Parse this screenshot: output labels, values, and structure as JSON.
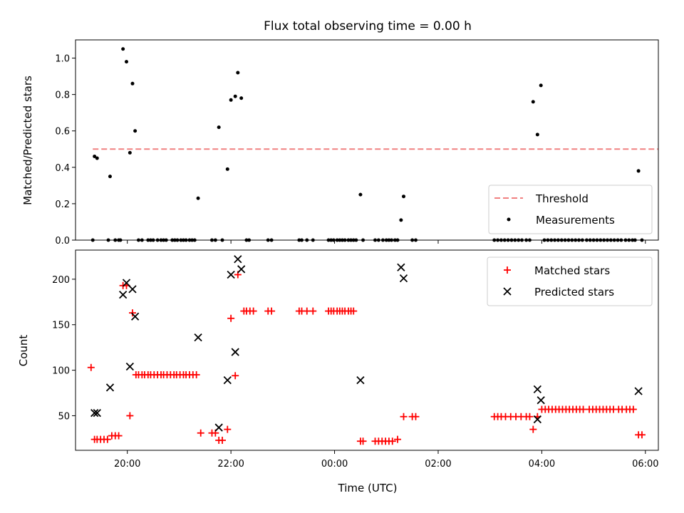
{
  "figure": {
    "title": "Flux total observing time = 0.00 h",
    "xlabel": "Time (UTC)",
    "x_ticks": [
      "20:00",
      "22:00",
      "00:00",
      "02:00",
      "04:00",
      "06:00"
    ]
  },
  "colors": {
    "threshold": "#f08080",
    "measurements": "#000000",
    "matched": "#ff0000",
    "predicted": "#000000"
  },
  "chart_data": [
    {
      "type": "scatter",
      "panel": "top",
      "ylabel": "Matched/Predicted stars",
      "xlim": [
        "19:00",
        "06:15"
      ],
      "ylim": [
        0,
        1.1
      ],
      "y_ticks": [
        "0.0",
        "0.2",
        "0.4",
        "0.6",
        "0.8",
        "1.0"
      ],
      "y_tick_values": [
        0,
        0.2,
        0.4,
        0.6,
        0.8,
        1.0
      ],
      "legend_position": "lower-right",
      "series": [
        {
          "name": "Threshold",
          "kind": "line",
          "style": "dashed",
          "x": [
            "19:20",
            "06:15"
          ],
          "y": [
            0.5,
            0.5
          ]
        },
        {
          "name": "Measurements",
          "kind": "scatter",
          "marker": "dot",
          "points": [
            [
              "19:20",
              0.0
            ],
            [
              "19:22",
              0.46
            ],
            [
              "19:25",
              0.45
            ],
            [
              "19:38",
              0.0
            ],
            [
              "19:40",
              0.35
            ],
            [
              "19:46",
              0.0
            ],
            [
              "19:50",
              0.0
            ],
            [
              "19:52",
              0.0
            ],
            [
              "19:55",
              1.05
            ],
            [
              "19:59",
              0.98
            ],
            [
              "20:03",
              0.48
            ],
            [
              "20:06",
              0.86
            ],
            [
              "20:09",
              0.6
            ],
            [
              "20:13",
              0.0
            ],
            [
              "20:17",
              0.0
            ],
            [
              "20:24",
              0.0
            ],
            [
              "20:27",
              0.0
            ],
            [
              "20:30",
              0.0
            ],
            [
              "20:35",
              0.0
            ],
            [
              "20:39",
              0.0
            ],
            [
              "20:42",
              0.0
            ],
            [
              "20:45",
              0.0
            ],
            [
              "20:52",
              0.0
            ],
            [
              "20:55",
              0.0
            ],
            [
              "20:58",
              0.0
            ],
            [
              "21:02",
              0.0
            ],
            [
              "21:05",
              0.0
            ],
            [
              "21:08",
              0.0
            ],
            [
              "21:12",
              0.0
            ],
            [
              "21:15",
              0.0
            ],
            [
              "21:18",
              0.0
            ],
            [
              "21:22",
              0.23
            ],
            [
              "21:38",
              0.0
            ],
            [
              "21:42",
              0.0
            ],
            [
              "21:46",
              0.62
            ],
            [
              "21:50",
              0.0
            ],
            [
              "21:56",
              0.39
            ],
            [
              "22:00",
              0.77
            ],
            [
              "22:05",
              0.79
            ],
            [
              "22:08",
              0.92
            ],
            [
              "22:12",
              0.78
            ],
            [
              "22:18",
              0.0
            ],
            [
              "22:21",
              0.0
            ],
            [
              "22:43",
              0.0
            ],
            [
              "22:47",
              0.0
            ],
            [
              "23:19",
              0.0
            ],
            [
              "23:22",
              0.0
            ],
            [
              "23:28",
              0.0
            ],
            [
              "23:35",
              0.0
            ],
            [
              "23:53",
              0.0
            ],
            [
              "23:56",
              0.0
            ],
            [
              "23:59",
              0.0
            ],
            [
              "00:03",
              0.0
            ],
            [
              "00:06",
              0.0
            ],
            [
              "00:09",
              0.0
            ],
            [
              "00:12",
              0.0
            ],
            [
              "00:16",
              0.0
            ],
            [
              "00:19",
              0.0
            ],
            [
              "00:22",
              0.0
            ],
            [
              "00:25",
              0.0
            ],
            [
              "00:30",
              0.25
            ],
            [
              "00:33",
              0.0
            ],
            [
              "00:47",
              0.0
            ],
            [
              "00:51",
              0.0
            ],
            [
              "00:56",
              0.0
            ],
            [
              "01:00",
              0.0
            ],
            [
              "01:03",
              0.0
            ],
            [
              "01:06",
              0.0
            ],
            [
              "01:10",
              0.0
            ],
            [
              "01:13",
              0.0
            ],
            [
              "01:17",
              0.11
            ],
            [
              "01:20",
              0.24
            ],
            [
              "01:30",
              0.0
            ],
            [
              "01:34",
              0.0
            ],
            [
              "03:05",
              0.0
            ],
            [
              "03:09",
              0.0
            ],
            [
              "03:13",
              0.0
            ],
            [
              "03:17",
              0.0
            ],
            [
              "03:21",
              0.0
            ],
            [
              "03:25",
              0.0
            ],
            [
              "03:29",
              0.0
            ],
            [
              "03:33",
              0.0
            ],
            [
              "03:37",
              0.0
            ],
            [
              "03:42",
              0.0
            ],
            [
              "03:46",
              0.0
            ],
            [
              "03:50",
              0.76
            ],
            [
              "03:55",
              0.58
            ],
            [
              "03:59",
              0.85
            ],
            [
              "04:03",
              0.0
            ],
            [
              "04:07",
              0.0
            ],
            [
              "04:11",
              0.0
            ],
            [
              "04:15",
              0.0
            ],
            [
              "04:19",
              0.0
            ],
            [
              "04:23",
              0.0
            ],
            [
              "04:27",
              0.0
            ],
            [
              "04:31",
              0.0
            ],
            [
              "04:35",
              0.0
            ],
            [
              "04:39",
              0.0
            ],
            [
              "04:43",
              0.0
            ],
            [
              "04:47",
              0.0
            ],
            [
              "04:52",
              0.0
            ],
            [
              "04:56",
              0.0
            ],
            [
              "05:00",
              0.0
            ],
            [
              "05:04",
              0.0
            ],
            [
              "05:08",
              0.0
            ],
            [
              "05:12",
              0.0
            ],
            [
              "05:16",
              0.0
            ],
            [
              "05:20",
              0.0
            ],
            [
              "05:24",
              0.0
            ],
            [
              "05:28",
              0.0
            ],
            [
              "05:32",
              0.0
            ],
            [
              "05:37",
              0.0
            ],
            [
              "05:41",
              0.0
            ],
            [
              "05:45",
              0.0
            ],
            [
              "05:48",
              0.0
            ],
            [
              "05:52",
              0.38
            ],
            [
              "05:56",
              0.0
            ]
          ]
        }
      ]
    },
    {
      "type": "scatter",
      "panel": "bottom",
      "ylabel": "Count",
      "xlim": [
        "19:00",
        "06:15"
      ],
      "ylim": [
        12,
        232
      ],
      "y_ticks": [
        "50",
        "100",
        "150",
        "200"
      ],
      "y_tick_values": [
        50,
        100,
        150,
        200
      ],
      "legend_position": "upper-right",
      "series": [
        {
          "name": "Matched stars",
          "kind": "scatter",
          "marker": "plus",
          "points": [
            [
              "19:18",
              103
            ],
            [
              "19:22",
              24
            ],
            [
              "19:25",
              24
            ],
            [
              "19:29",
              24
            ],
            [
              "19:33",
              24
            ],
            [
              "19:37",
              24
            ],
            [
              "19:42",
              28
            ],
            [
              "19:46",
              28
            ],
            [
              "19:50",
              28
            ],
            [
              "19:55",
              193
            ],
            [
              "19:59",
              193
            ],
            [
              "20:03",
              50
            ],
            [
              "20:06",
              163
            ],
            [
              "20:10",
              95
            ],
            [
              "20:13",
              95
            ],
            [
              "20:17",
              95
            ],
            [
              "20:20",
              95
            ],
            [
              "20:24",
              95
            ],
            [
              "20:27",
              95
            ],
            [
              "20:31",
              95
            ],
            [
              "20:35",
              95
            ],
            [
              "20:39",
              95
            ],
            [
              "20:42",
              95
            ],
            [
              "20:46",
              95
            ],
            [
              "20:50",
              95
            ],
            [
              "20:54",
              95
            ],
            [
              "20:57",
              95
            ],
            [
              "21:01",
              95
            ],
            [
              "21:05",
              95
            ],
            [
              "21:08",
              95
            ],
            [
              "21:12",
              95
            ],
            [
              "21:16",
              95
            ],
            [
              "21:20",
              95
            ],
            [
              "21:25",
              31
            ],
            [
              "21:38",
              31
            ],
            [
              "21:42",
              31
            ],
            [
              "21:46",
              23
            ],
            [
              "21:50",
              23
            ],
            [
              "21:56",
              35
            ],
            [
              "22:00",
              157
            ],
            [
              "22:05",
              94
            ],
            [
              "22:08",
              205
            ],
            [
              "22:15",
              165
            ],
            [
              "22:18",
              165
            ],
            [
              "22:22",
              165
            ],
            [
              "22:26",
              165
            ],
            [
              "22:43",
              165
            ],
            [
              "22:47",
              165
            ],
            [
              "23:19",
              165
            ],
            [
              "23:22",
              165
            ],
            [
              "23:28",
              165
            ],
            [
              "23:35",
              165
            ],
            [
              "23:53",
              165
            ],
            [
              "23:56",
              165
            ],
            [
              "23:59",
              165
            ],
            [
              "00:03",
              165
            ],
            [
              "00:06",
              165
            ],
            [
              "00:09",
              165
            ],
            [
              "00:12",
              165
            ],
            [
              "00:16",
              165
            ],
            [
              "00:19",
              165
            ],
            [
              "00:22",
              165
            ],
            [
              "00:30",
              22
            ],
            [
              "00:33",
              22
            ],
            [
              "00:47",
              22
            ],
            [
              "00:51",
              22
            ],
            [
              "00:55",
              22
            ],
            [
              "00:59",
              22
            ],
            [
              "01:03",
              22
            ],
            [
              "01:07",
              22
            ],
            [
              "01:13",
              24
            ],
            [
              "01:20",
              49
            ],
            [
              "01:30",
              49
            ],
            [
              "01:34",
              49
            ],
            [
              "03:05",
              49
            ],
            [
              "03:09",
              49
            ],
            [
              "03:13",
              49
            ],
            [
              "03:18",
              49
            ],
            [
              "03:24",
              49
            ],
            [
              "03:30",
              49
            ],
            [
              "03:36",
              49
            ],
            [
              "03:42",
              49
            ],
            [
              "03:46",
              49
            ],
            [
              "03:50",
              35
            ],
            [
              "03:55",
              49
            ],
            [
              "04:00",
              57
            ],
            [
              "04:04",
              57
            ],
            [
              "04:08",
              57
            ],
            [
              "04:12",
              57
            ],
            [
              "04:16",
              57
            ],
            [
              "04:20",
              57
            ],
            [
              "04:24",
              57
            ],
            [
              "04:28",
              57
            ],
            [
              "04:32",
              57
            ],
            [
              "04:36",
              57
            ],
            [
              "04:40",
              57
            ],
            [
              "04:44",
              57
            ],
            [
              "04:48",
              57
            ],
            [
              "04:55",
              57
            ],
            [
              "04:59",
              57
            ],
            [
              "05:03",
              57
            ],
            [
              "05:07",
              57
            ],
            [
              "05:11",
              57
            ],
            [
              "05:15",
              57
            ],
            [
              "05:19",
              57
            ],
            [
              "05:23",
              57
            ],
            [
              "05:29",
              57
            ],
            [
              "05:33",
              57
            ],
            [
              "05:38",
              57
            ],
            [
              "05:42",
              57
            ],
            [
              "05:46",
              57
            ],
            [
              "05:52",
              29
            ],
            [
              "05:56",
              29
            ]
          ]
        },
        {
          "name": "Predicted stars",
          "kind": "scatter",
          "marker": "x",
          "points": [
            [
              "19:22",
              53
            ],
            [
              "19:25",
              53
            ],
            [
              "19:40",
              81
            ],
            [
              "19:55",
              183
            ],
            [
              "19:59",
              196
            ],
            [
              "20:03",
              104
            ],
            [
              "20:06",
              189
            ],
            [
              "20:09",
              159
            ],
            [
              "21:22",
              136
            ],
            [
              "21:46",
              37
            ],
            [
              "21:56",
              89
            ],
            [
              "22:00",
              205
            ],
            [
              "22:05",
              120
            ],
            [
              "22:08",
              222
            ],
            [
              "22:12",
              211
            ],
            [
              "00:30",
              89
            ],
            [
              "01:17",
              213
            ],
            [
              "01:20",
              201
            ],
            [
              "03:55",
              46
            ],
            [
              "03:55",
              79
            ],
            [
              "03:59",
              67
            ],
            [
              "05:52",
              77
            ]
          ]
        }
      ]
    }
  ]
}
